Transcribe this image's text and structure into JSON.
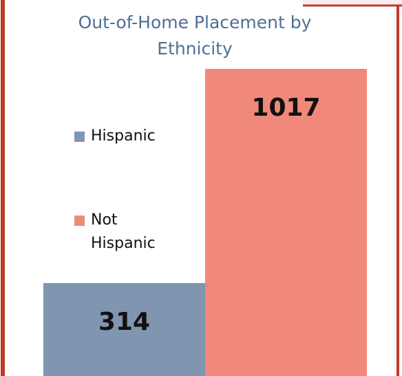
{
  "chart_data": {
    "type": "bar",
    "title": "Out-of-Home Placement by Ethnicity",
    "categories": [
      "Hispanic",
      "Not Hispanic"
    ],
    "values": [
      314,
      1017
    ],
    "colors": [
      "#8096b0",
      "#f0887c"
    ]
  }
}
